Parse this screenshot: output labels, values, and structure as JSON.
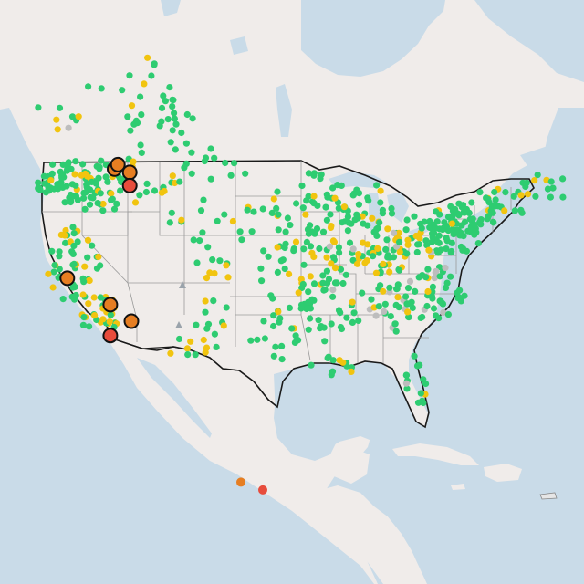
{
  "map": {
    "colors": {
      "water": "#c9dbe8",
      "land": "#f0ecea",
      "us_border": "#1a1a1a",
      "state_lines": "#9a9a9a",
      "good": "#2ecc71",
      "moderate": "#f1c40f",
      "sensitive": "#e67e22",
      "unhealthy": "#e74c3c",
      "no_data": "#bdbdbd"
    },
    "large_markers": [
      {
        "category": "sensitive",
        "lon": -116.1,
        "lat": 48.4
      },
      {
        "category": "sensitive",
        "lon": -115.7,
        "lat": 48.8
      },
      {
        "category": "sensitive",
        "lon": -114.3,
        "lat": 48.1
      },
      {
        "category": "unhealthy",
        "lon": -114.3,
        "lat": 46.9
      },
      {
        "category": "sensitive",
        "lon": -121.7,
        "lat": 38.5
      },
      {
        "category": "sensitive",
        "lon": -116.6,
        "lat": 36.1
      },
      {
        "category": "sensitive",
        "lon": -114.1,
        "lat": 34.6
      },
      {
        "category": "unhealthy",
        "lon": -116.6,
        "lat": 33.3
      }
    ],
    "small_markers": [
      {
        "category": "unhealthy",
        "lon": -98.5,
        "lat": 19.3
      },
      {
        "category": "sensitive",
        "lon": -101.1,
        "lat": 20.0
      }
    ]
  }
}
